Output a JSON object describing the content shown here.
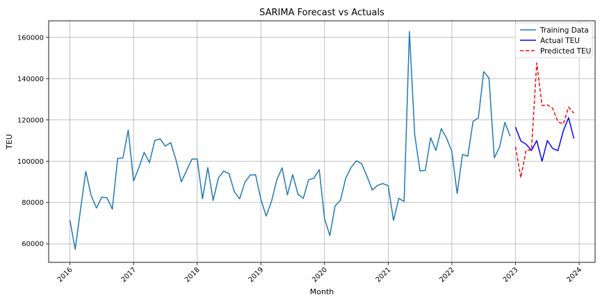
{
  "chart_data": {
    "type": "line",
    "title": "SARIMA Forecast vs Actuals",
    "xlabel": "Month",
    "ylabel": "TEU",
    "ylim": [
      51000,
      168000
    ],
    "xlim": [
      "2015-09",
      "2024-04"
    ],
    "grid": true,
    "legend_position": "top-right",
    "x_ticks": [
      "2016",
      "2017",
      "2018",
      "2019",
      "2020",
      "2021",
      "2022",
      "2023",
      "2024"
    ],
    "y_ticks": [
      60000,
      80000,
      100000,
      120000,
      140000,
      160000
    ],
    "series": [
      {
        "name": "Training Data",
        "color": "#1f77b4",
        "style": "solid",
        "x": [
          "2016-01",
          "2016-02",
          "2016-03",
          "2016-04",
          "2016-05",
          "2016-06",
          "2016-07",
          "2016-08",
          "2016-09",
          "2016-10",
          "2016-11",
          "2016-12",
          "2017-01",
          "2017-02",
          "2017-03",
          "2017-04",
          "2017-05",
          "2017-06",
          "2017-07",
          "2017-08",
          "2017-09",
          "2017-10",
          "2017-11",
          "2017-12",
          "2018-01",
          "2018-02",
          "2018-03",
          "2018-04",
          "2018-05",
          "2018-06",
          "2018-07",
          "2018-08",
          "2018-09",
          "2018-10",
          "2018-11",
          "2018-12",
          "2019-01",
          "2019-02",
          "2019-03",
          "2019-04",
          "2019-05",
          "2019-06",
          "2019-07",
          "2019-08",
          "2019-09",
          "2019-10",
          "2019-11",
          "2019-12",
          "2020-01",
          "2020-02",
          "2020-03",
          "2020-04",
          "2020-05",
          "2020-06",
          "2020-07",
          "2020-08",
          "2020-09",
          "2020-10",
          "2020-11",
          "2020-12",
          "2021-01",
          "2021-02",
          "2021-03",
          "2021-04",
          "2021-05",
          "2021-06",
          "2021-07",
          "2021-08",
          "2021-09",
          "2021-10",
          "2021-11",
          "2021-12",
          "2022-01",
          "2022-02",
          "2022-03",
          "2022-04",
          "2022-05",
          "2022-06",
          "2022-07",
          "2022-08",
          "2022-09",
          "2022-10",
          "2022-11",
          "2022-12"
        ],
        "values": [
          71500,
          57300,
          76500,
          95000,
          83500,
          77300,
          82500,
          82300,
          76800,
          101300,
          101600,
          115100,
          90400,
          96800,
          104300,
          99300,
          110000,
          110800,
          107300,
          109000,
          100600,
          90000,
          95500,
          101000,
          101100,
          81800,
          96900,
          81000,
          91900,
          95200,
          94000,
          85200,
          81800,
          89900,
          93300,
          93400,
          81600,
          73400,
          80500,
          91000,
          96800,
          83700,
          93500,
          84000,
          82000,
          91000,
          91800,
          95900,
          72200,
          64000,
          78400,
          81100,
          91800,
          97000,
          100200,
          98800,
          92700,
          86000,
          88300,
          89200,
          88100,
          71300,
          82000,
          80500,
          162800,
          112800,
          95300,
          95600,
          111400,
          105200,
          115800,
          111200,
          104700,
          84300,
          103300,
          102400,
          119300,
          121000,
          143400,
          140300,
          101600,
          106900,
          118800,
          112100
        ]
      },
      {
        "name": "Actual TEU",
        "color": "#0000ff",
        "style": "solid",
        "x": [
          "2023-01",
          "2023-02",
          "2023-03",
          "2023-04",
          "2023-05",
          "2023-06",
          "2023-07",
          "2023-08",
          "2023-09",
          "2023-10",
          "2023-11",
          "2023-12"
        ],
        "values": [
          116500,
          109800,
          108200,
          105200,
          110000,
          100000,
          110000,
          106200,
          105100,
          114600,
          121100,
          111000
        ]
      },
      {
        "name": "Predicted TEU",
        "color": "#ff0000",
        "style": "dashed",
        "x": [
          "2023-01",
          "2023-02",
          "2023-03",
          "2023-04",
          "2023-05",
          "2023-06",
          "2023-07",
          "2023-08",
          "2023-09",
          "2023-10",
          "2023-11",
          "2023-12"
        ],
        "values": [
          107000,
          92000,
          105400,
          105400,
          147600,
          127000,
          127300,
          125600,
          119100,
          118000,
          126200,
          123300
        ]
      }
    ]
  }
}
